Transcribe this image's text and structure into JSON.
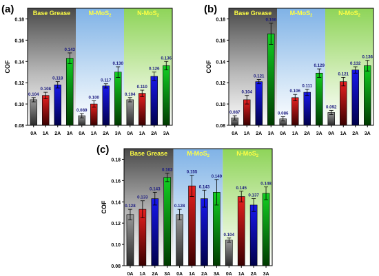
{
  "chart_data": [
    {
      "type": "bar",
      "panel_label": "(a)",
      "ylabel": "COF",
      "ylim": [
        0.08,
        0.19
      ],
      "yticks": [
        "0.08",
        "0.10",
        "0.12",
        "0.14",
        "0.16",
        "0.18"
      ],
      "group_labels": [
        "Base Grease",
        "M-MoS",
        "N-MoS"
      ],
      "group_label_subscript": [
        "",
        "2",
        "2"
      ],
      "categories": [
        "0A",
        "1A",
        "2A",
        "3A",
        "0A",
        "1A",
        "2A",
        "3A",
        "0A",
        "1A",
        "2A",
        "3A"
      ],
      "values": [
        0.104,
        0.108,
        0.118,
        0.143,
        0.089,
        0.1,
        0.117,
        0.13,
        0.104,
        0.11,
        0.126,
        0.136
      ],
      "value_labels": [
        "0.104",
        "0.108",
        "0.118",
        "0.143",
        "0.089",
        "0.100",
        "0.117",
        "0.130",
        "0.104",
        "0.110",
        "0.126",
        "0.136"
      ],
      "errors": [
        0.002,
        0.003,
        0.003,
        0.005,
        0.002,
        0.003,
        0.002,
        0.005,
        0.002,
        0.003,
        0.004,
        0.004
      ]
    },
    {
      "type": "bar",
      "panel_label": "(b)",
      "ylabel": "COF",
      "ylim": [
        0.08,
        0.19
      ],
      "yticks": [
        "0.08",
        "0.10",
        "0.12",
        "0.14",
        "0.16",
        "0.18"
      ],
      "group_labels": [
        "Base Grease",
        "M-MoS",
        "N-MoS"
      ],
      "group_label_subscript": [
        "",
        "2",
        "2"
      ],
      "categories": [
        "0A",
        "1A",
        "2A",
        "3A",
        "0A",
        "1A",
        "2A",
        "3A",
        "0A",
        "1A",
        "2A",
        "3A"
      ],
      "values": [
        0.087,
        0.104,
        0.121,
        0.166,
        0.086,
        0.106,
        0.111,
        0.129,
        0.092,
        0.121,
        0.132,
        0.136
      ],
      "value_labels": [
        "0.087",
        "0.104",
        "0.121",
        "0.166",
        "0.086",
        "0.106",
        "0.111",
        "0.129",
        "0.092",
        "0.121",
        "0.132",
        "0.136"
      ],
      "errors": [
        0.002,
        0.004,
        0.002,
        0.01,
        0.002,
        0.003,
        0.003,
        0.004,
        0.002,
        0.004,
        0.003,
        0.005
      ]
    },
    {
      "type": "bar",
      "panel_label": "(c)",
      "ylabel": "COF",
      "ylim": [
        0.08,
        0.19
      ],
      "yticks": [
        "0.08",
        "0.10",
        "0.12",
        "0.14",
        "0.16",
        "0.18"
      ],
      "group_labels": [
        "Base Grease",
        "M-MoS",
        "N-MoS"
      ],
      "group_label_subscript": [
        "",
        "2",
        "2"
      ],
      "categories": [
        "0A",
        "1A",
        "2A",
        "3A",
        "0A",
        "1A",
        "2A",
        "3A",
        "0A",
        "1A",
        "2A",
        "3A"
      ],
      "values": [
        0.128,
        0.133,
        0.143,
        0.163,
        0.128,
        0.155,
        0.143,
        0.149,
        0.104,
        0.145,
        0.137,
        0.148
      ],
      "value_labels": [
        "0.128",
        "0.133",
        "0.143",
        "0.163",
        "0.128",
        "0.155",
        "0.143",
        "0.149",
        "0.104",
        "0.145",
        "0.137",
        "0.148"
      ],
      "errors": [
        0.005,
        0.008,
        0.006,
        0.004,
        0.005,
        0.01,
        0.008,
        0.012,
        0.002,
        0.005,
        0.006,
        0.006
      ]
    }
  ],
  "colors": {
    "bars": [
      "#7f7f7f",
      "#d42020",
      "#1010cc",
      "#10b020"
    ],
    "group_bg": [
      "#666666",
      "#9cc4ec",
      "#a8e07c"
    ],
    "group_label_text": "#ffff44",
    "value_label": "#1a1a80",
    "axis": "#000000"
  }
}
